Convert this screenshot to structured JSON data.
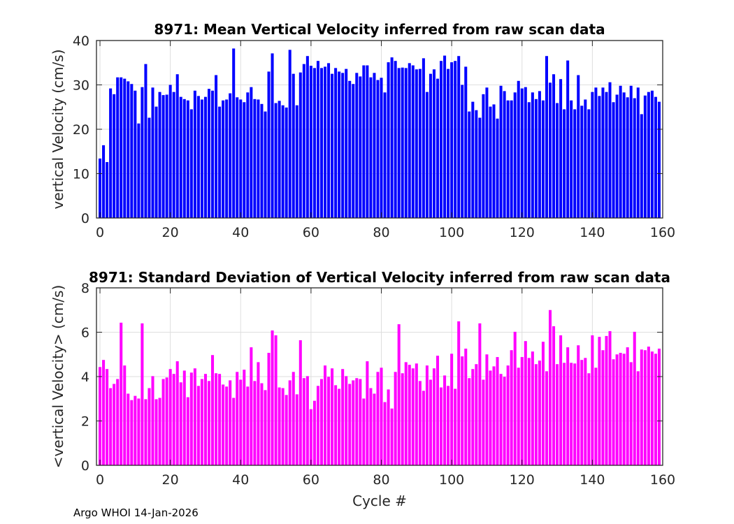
{
  "chart_data": [
    {
      "type": "bar",
      "title": "8971: Mean Vertical Velocity inferred from raw scan data",
      "xlabel": "",
      "ylabel": "vertical Velocity (cm/s)",
      "xlim": [
        -1,
        160
      ],
      "ylim": [
        0,
        40
      ],
      "xticks": [
        "0",
        "20",
        "40",
        "60",
        "80",
        "100",
        "120",
        "140",
        "160"
      ],
      "yticks": [
        "0",
        "10",
        "20",
        "30",
        "40"
      ],
      "grid": true,
      "color": "#0000ff",
      "x_start": 0,
      "values": [
        13.4,
        16.4,
        12.6,
        29.2,
        27.9,
        31.7,
        31.7,
        31.4,
        30.8,
        30.2,
        28.7,
        21.3,
        29.5,
        34.7,
        22.6,
        29.4,
        25.1,
        28.4,
        27.7,
        27.8,
        30.0,
        28.4,
        32.4,
        27.3,
        26.8,
        26.5,
        24.5,
        28.7,
        27.5,
        26.7,
        27.3,
        29.1,
        28.7,
        32.2,
        25.1,
        26.5,
        26.7,
        28.1,
        38.2,
        27.2,
        26.7,
        26.1,
        28.3,
        29.5,
        26.8,
        26.7,
        25.7,
        24.0,
        33.0,
        37.1,
        25.9,
        26.4,
        25.4,
        24.9,
        37.9,
        32.5,
        25.4,
        32.8,
        34.7,
        36.5,
        34.3,
        33.8,
        35.4,
        33.8,
        34.1,
        34.9,
        32.5,
        33.8,
        33.0,
        32.7,
        33.6,
        30.9,
        30.2,
        32.7,
        31.9,
        34.4,
        34.4,
        31.7,
        32.7,
        31.1,
        31.6,
        28.3,
        35.1,
        36.2,
        35.4,
        33.8,
        33.9,
        33.8,
        34.9,
        34.4,
        33.5,
        33.6,
        36.0,
        28.4,
        32.5,
        33.5,
        31.4,
        35.4,
        36.6,
        33.6,
        35.1,
        35.4,
        36.5,
        30.0,
        34.1,
        24.0,
        26.2,
        24.3,
        22.6,
        27.9,
        29.4,
        25.1,
        25.6,
        22.4,
        29.8,
        28.6,
        26.5,
        26.5,
        28.3,
        30.9,
        29.2,
        29.5,
        26.1,
        28.3,
        26.8,
        28.6,
        26.5,
        36.5,
        30.5,
        32.4,
        25.9,
        31.3,
        24.5,
        35.5,
        26.5,
        24.5,
        32.2,
        25.3,
        26.7,
        24.5,
        28.4,
        29.4,
        27.5,
        29.4,
        28.4,
        30.6,
        26.1,
        27.8,
        29.8,
        28.3,
        27.2,
        29.8,
        27.0,
        29.4,
        23.4,
        27.6,
        28.4,
        28.7,
        27.3,
        26.2
      ]
    },
    {
      "type": "bar",
      "title": "8971: Standard Deviation of Vertical Velocity inferred from raw scan data",
      "xlabel": "Cycle #",
      "ylabel": "<vertical Velocity> (cm/s)",
      "xlim": [
        -1,
        160
      ],
      "ylim": [
        0,
        8
      ],
      "xticks": [
        "0",
        "20",
        "40",
        "60",
        "80",
        "100",
        "120",
        "140",
        "160"
      ],
      "yticks": [
        "0",
        "2",
        "4",
        "6",
        "8"
      ],
      "grid": true,
      "color": "#ff00ff",
      "x_start": 0,
      "values": [
        4.43,
        4.75,
        4.34,
        3.48,
        3.67,
        3.89,
        6.43,
        4.5,
        3.23,
        2.94,
        3.13,
        3.01,
        6.4,
        2.98,
        3.48,
        4.02,
        2.98,
        3.04,
        3.89,
        3.96,
        4.34,
        4.12,
        4.69,
        3.74,
        4.27,
        3.07,
        4.18,
        4.37,
        3.58,
        3.89,
        4.12,
        3.8,
        4.97,
        4.15,
        4.12,
        3.64,
        3.55,
        3.83,
        3.04,
        4.21,
        3.86,
        4.31,
        3.55,
        5.32,
        3.8,
        4.65,
        3.7,
        3.39,
        5.07,
        6.08,
        5.86,
        3.51,
        3.48,
        3.17,
        3.83,
        4.21,
        3.2,
        5.64,
        3.93,
        4.02,
        2.53,
        2.91,
        3.58,
        3.89,
        4.5,
        3.99,
        4.37,
        3.61,
        3.45,
        4.34,
        4.02,
        3.67,
        3.83,
        3.93,
        3.89,
        3.01,
        4.69,
        3.48,
        3.23,
        4.21,
        4.4,
        2.85,
        3.42,
        2.56,
        4.21,
        6.36,
        4.15,
        4.65,
        4.53,
        4.37,
        4.59,
        3.8,
        3.36,
        4.5,
        3.86,
        4.37,
        4.94,
        3.51,
        4.05,
        3.58,
        5.03,
        3.45,
        6.49,
        4.91,
        5.26,
        3.93,
        4.34,
        4.56,
        6.4,
        3.86,
        5.0,
        4.27,
        4.46,
        4.88,
        4.12,
        3.99,
        4.5,
        5.19,
        6.02,
        4.4,
        4.88,
        5.6,
        4.84,
        5.13,
        4.56,
        4.72,
        5.57,
        4.24,
        7.0,
        6.27,
        4.56,
        5.86,
        4.62,
        5.32,
        4.62,
        4.59,
        5.41,
        4.75,
        4.84,
        4.15,
        5.86,
        4.4,
        5.79,
        5.19,
        5.83,
        6.05,
        4.78,
        5.0,
        5.07,
        5.03,
        5.32,
        4.65,
        6.02,
        4.24,
        5.22,
        5.19,
        5.35,
        5.13,
        5.03,
        5.26
      ]
    }
  ],
  "footer": "Argo WHOI 14-Jan-2026"
}
